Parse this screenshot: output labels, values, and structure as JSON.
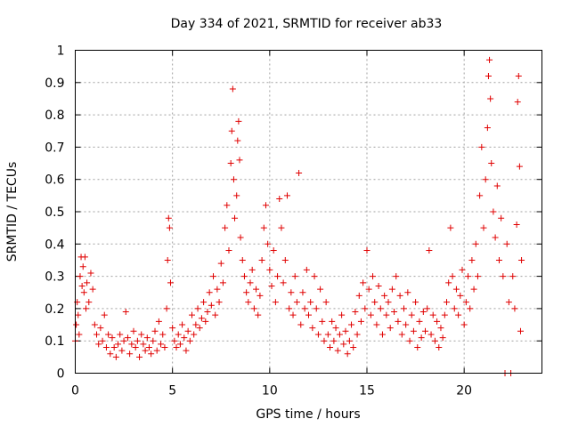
{
  "chart_data": {
    "type": "scatter",
    "title": "Day 334 of 2021, SRMTID for receiver ab33",
    "xlabel": "GPS time / hours",
    "ylabel": "SRMTID / TECUs",
    "xlim": [
      0,
      24
    ],
    "ylim": [
      0,
      1
    ],
    "grid": true,
    "marker": "plus",
    "color": "#e00000",
    "x_ticks": [
      0,
      5,
      10,
      15,
      20
    ],
    "x_tick_labels": [
      "0",
      "5",
      "10",
      "15",
      "20"
    ],
    "y_ticks": [
      0,
      0.1,
      0.2,
      0.3,
      0.4,
      0.5,
      0.6,
      0.7,
      0.8,
      0.9,
      1
    ],
    "y_tick_labels": [
      "0",
      "0.1",
      "0.2",
      "0.3",
      "0.4",
      "0.5",
      "0.6",
      "0.7",
      "0.8",
      "0.9",
      "1"
    ],
    "series": [
      {
        "name": "SRMTID",
        "points": [
          [
            0.0,
            0.1
          ],
          [
            0.05,
            0.15
          ],
          [
            0.1,
            0.22
          ],
          [
            0.15,
            0.18
          ],
          [
            0.2,
            0.12
          ],
          [
            0.25,
            0.3
          ],
          [
            0.3,
            0.36
          ],
          [
            0.35,
            0.27
          ],
          [
            0.4,
            0.33
          ],
          [
            0.45,
            0.25
          ],
          [
            0.5,
            0.36
          ],
          [
            0.55,
            0.2
          ],
          [
            0.6,
            0.28
          ],
          [
            0.7,
            0.22
          ],
          [
            0.8,
            0.31
          ],
          [
            0.9,
            0.26
          ],
          [
            1.0,
            0.15
          ],
          [
            1.1,
            0.12
          ],
          [
            1.2,
            0.09
          ],
          [
            1.3,
            0.14
          ],
          [
            1.4,
            0.1
          ],
          [
            1.5,
            0.18
          ],
          [
            1.6,
            0.08
          ],
          [
            1.7,
            0.12
          ],
          [
            1.8,
            0.06
          ],
          [
            1.9,
            0.11
          ],
          [
            2.0,
            0.08
          ],
          [
            2.1,
            0.05
          ],
          [
            2.2,
            0.09
          ],
          [
            2.3,
            0.12
          ],
          [
            2.4,
            0.07
          ],
          [
            2.5,
            0.1
          ],
          [
            2.6,
            0.19
          ],
          [
            2.7,
            0.11
          ],
          [
            2.8,
            0.06
          ],
          [
            2.9,
            0.09
          ],
          [
            3.0,
            0.13
          ],
          [
            3.1,
            0.08
          ],
          [
            3.2,
            0.1
          ],
          [
            3.3,
            0.05
          ],
          [
            3.4,
            0.12
          ],
          [
            3.5,
            0.09
          ],
          [
            3.6,
            0.07
          ],
          [
            3.7,
            0.11
          ],
          [
            3.8,
            0.08
          ],
          [
            3.9,
            0.06
          ],
          [
            4.0,
            0.1
          ],
          [
            4.1,
            0.13
          ],
          [
            4.2,
            0.07
          ],
          [
            4.3,
            0.16
          ],
          [
            4.4,
            0.09
          ],
          [
            4.5,
            0.12
          ],
          [
            4.6,
            0.08
          ],
          [
            4.7,
            0.2
          ],
          [
            4.75,
            0.35
          ],
          [
            4.8,
            0.48
          ],
          [
            4.85,
            0.45
          ],
          [
            4.9,
            0.28
          ],
          [
            5.0,
            0.14
          ],
          [
            5.1,
            0.1
          ],
          [
            5.2,
            0.08
          ],
          [
            5.3,
            0.12
          ],
          [
            5.4,
            0.09
          ],
          [
            5.5,
            0.15
          ],
          [
            5.6,
            0.11
          ],
          [
            5.7,
            0.07
          ],
          [
            5.8,
            0.13
          ],
          [
            5.9,
            0.1
          ],
          [
            6.0,
            0.18
          ],
          [
            6.1,
            0.12
          ],
          [
            6.2,
            0.15
          ],
          [
            6.3,
            0.2
          ],
          [
            6.4,
            0.14
          ],
          [
            6.5,
            0.17
          ],
          [
            6.6,
            0.22
          ],
          [
            6.7,
            0.16
          ],
          [
            6.8,
            0.19
          ],
          [
            6.9,
            0.25
          ],
          [
            7.0,
            0.21
          ],
          [
            7.1,
            0.3
          ],
          [
            7.2,
            0.18
          ],
          [
            7.3,
            0.26
          ],
          [
            7.4,
            0.22
          ],
          [
            7.5,
            0.34
          ],
          [
            7.6,
            0.28
          ],
          [
            7.7,
            0.45
          ],
          [
            7.8,
            0.52
          ],
          [
            7.9,
            0.38
          ],
          [
            8.0,
            0.65
          ],
          [
            8.05,
            0.75
          ],
          [
            8.1,
            0.88
          ],
          [
            8.15,
            0.6
          ],
          [
            8.2,
            0.48
          ],
          [
            8.3,
            0.55
          ],
          [
            8.35,
            0.72
          ],
          [
            8.4,
            0.78
          ],
          [
            8.45,
            0.66
          ],
          [
            8.5,
            0.42
          ],
          [
            8.6,
            0.35
          ],
          [
            8.7,
            0.3
          ],
          [
            8.8,
            0.25
          ],
          [
            8.9,
            0.22
          ],
          [
            9.0,
            0.28
          ],
          [
            9.1,
            0.32
          ],
          [
            9.2,
            0.2
          ],
          [
            9.3,
            0.26
          ],
          [
            9.4,
            0.18
          ],
          [
            9.5,
            0.24
          ],
          [
            9.6,
            0.35
          ],
          [
            9.7,
            0.45
          ],
          [
            9.8,
            0.52
          ],
          [
            9.9,
            0.4
          ],
          [
            10.0,
            0.32
          ],
          [
            10.1,
            0.27
          ],
          [
            10.2,
            0.38
          ],
          [
            10.3,
            0.22
          ],
          [
            10.4,
            0.3
          ],
          [
            10.5,
            0.54
          ],
          [
            10.6,
            0.45
          ],
          [
            10.7,
            0.28
          ],
          [
            10.8,
            0.35
          ],
          [
            10.9,
            0.55
          ],
          [
            11.0,
            0.2
          ],
          [
            11.1,
            0.25
          ],
          [
            11.2,
            0.18
          ],
          [
            11.3,
            0.3
          ],
          [
            11.4,
            0.22
          ],
          [
            11.5,
            0.62
          ],
          [
            11.6,
            0.15
          ],
          [
            11.7,
            0.25
          ],
          [
            11.8,
            0.2
          ],
          [
            11.9,
            0.32
          ],
          [
            12.0,
            0.18
          ],
          [
            12.1,
            0.22
          ],
          [
            12.2,
            0.14
          ],
          [
            12.3,
            0.3
          ],
          [
            12.4,
            0.2
          ],
          [
            12.5,
            0.12
          ],
          [
            12.6,
            0.26
          ],
          [
            12.7,
            0.16
          ],
          [
            12.8,
            0.1
          ],
          [
            12.9,
            0.22
          ],
          [
            13.0,
            0.12
          ],
          [
            13.1,
            0.08
          ],
          [
            13.2,
            0.16
          ],
          [
            13.3,
            0.1
          ],
          [
            13.4,
            0.14
          ],
          [
            13.5,
            0.07
          ],
          [
            13.6,
            0.12
          ],
          [
            13.7,
            0.18
          ],
          [
            13.8,
            0.09
          ],
          [
            13.9,
            0.13
          ],
          [
            14.0,
            0.06
          ],
          [
            14.1,
            0.1
          ],
          [
            14.2,
            0.15
          ],
          [
            14.3,
            0.08
          ],
          [
            14.4,
            0.19
          ],
          [
            14.5,
            0.12
          ],
          [
            14.6,
            0.24
          ],
          [
            14.7,
            0.16
          ],
          [
            14.8,
            0.28
          ],
          [
            14.9,
            0.2
          ],
          [
            15.0,
            0.38
          ],
          [
            15.1,
            0.26
          ],
          [
            15.2,
            0.18
          ],
          [
            15.3,
            0.3
          ],
          [
            15.4,
            0.22
          ],
          [
            15.5,
            0.15
          ],
          [
            15.6,
            0.27
          ],
          [
            15.7,
            0.2
          ],
          [
            15.8,
            0.12
          ],
          [
            15.9,
            0.24
          ],
          [
            16.0,
            0.18
          ],
          [
            16.1,
            0.22
          ],
          [
            16.2,
            0.14
          ],
          [
            16.3,
            0.26
          ],
          [
            16.4,
            0.19
          ],
          [
            16.5,
            0.3
          ],
          [
            16.6,
            0.16
          ],
          [
            16.7,
            0.24
          ],
          [
            16.8,
            0.12
          ],
          [
            16.9,
            0.2
          ],
          [
            17.0,
            0.15
          ],
          [
            17.1,
            0.25
          ],
          [
            17.2,
            0.1
          ],
          [
            17.3,
            0.18
          ],
          [
            17.4,
            0.13
          ],
          [
            17.5,
            0.22
          ],
          [
            17.6,
            0.08
          ],
          [
            17.7,
            0.16
          ],
          [
            17.8,
            0.11
          ],
          [
            17.9,
            0.19
          ],
          [
            18.0,
            0.13
          ],
          [
            18.1,
            0.2
          ],
          [
            18.2,
            0.38
          ],
          [
            18.3,
            0.12
          ],
          [
            18.4,
            0.18
          ],
          [
            18.5,
            0.1
          ],
          [
            18.6,
            0.16
          ],
          [
            18.7,
            0.08
          ],
          [
            18.8,
            0.14
          ],
          [
            18.9,
            0.11
          ],
          [
            19.0,
            0.18
          ],
          [
            19.1,
            0.22
          ],
          [
            19.2,
            0.28
          ],
          [
            19.3,
            0.45
          ],
          [
            19.4,
            0.3
          ],
          [
            19.5,
            0.2
          ],
          [
            19.6,
            0.26
          ],
          [
            19.7,
            0.18
          ],
          [
            19.8,
            0.24
          ],
          [
            19.9,
            0.32
          ],
          [
            20.0,
            0.15
          ],
          [
            20.1,
            0.22
          ],
          [
            20.2,
            0.3
          ],
          [
            20.3,
            0.2
          ],
          [
            20.4,
            0.35
          ],
          [
            20.5,
            0.26
          ],
          [
            20.6,
            0.4
          ],
          [
            20.7,
            0.3
          ],
          [
            20.8,
            0.55
          ],
          [
            20.9,
            0.7
          ],
          [
            21.0,
            0.45
          ],
          [
            21.1,
            0.6
          ],
          [
            21.2,
            0.76
          ],
          [
            21.25,
            0.92
          ],
          [
            21.3,
            0.97
          ],
          [
            21.35,
            0.85
          ],
          [
            21.4,
            0.65
          ],
          [
            21.5,
            0.5
          ],
          [
            21.6,
            0.42
          ],
          [
            21.7,
            0.58
          ],
          [
            21.8,
            0.35
          ],
          [
            21.9,
            0.48
          ],
          [
            22.0,
            0.3
          ],
          [
            22.1,
            0.0
          ],
          [
            22.2,
            0.4
          ],
          [
            22.3,
            0.22
          ],
          [
            22.4,
            0.0
          ],
          [
            22.5,
            0.3
          ],
          [
            22.6,
            0.2
          ],
          [
            22.7,
            0.46
          ],
          [
            22.75,
            0.84
          ],
          [
            22.8,
            0.92
          ],
          [
            22.85,
            0.64
          ],
          [
            22.9,
            0.13
          ],
          [
            22.95,
            0.35
          ]
        ]
      }
    ]
  }
}
